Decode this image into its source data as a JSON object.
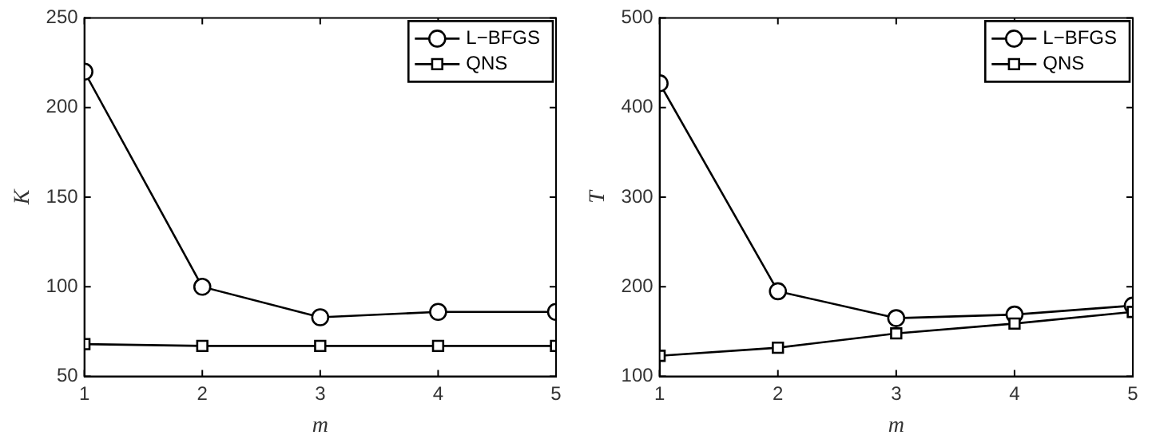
{
  "chart_data": [
    {
      "type": "line",
      "xlabel": "m",
      "ylabel": "K",
      "x": [
        1,
        2,
        3,
        4,
        5
      ],
      "xlim": [
        1,
        5
      ],
      "xticks": [
        1,
        2,
        3,
        4,
        5
      ],
      "ylim": [
        50,
        250
      ],
      "yticks": [
        50,
        100,
        150,
        200,
        250
      ],
      "grid": false,
      "legend": "top right",
      "series": [
        {
          "name": "L−BFGS",
          "color": "#000000",
          "marker": "circle",
          "values": [
            220,
            100,
            83,
            86,
            86
          ]
        },
        {
          "name": "QNS",
          "color": "#000000",
          "marker": "square",
          "values": [
            68,
            67,
            67,
            67,
            67
          ]
        }
      ]
    },
    {
      "type": "line",
      "xlabel": "m",
      "ylabel": "T",
      "x": [
        1,
        2,
        3,
        4,
        5
      ],
      "xlim": [
        1,
        5
      ],
      "xticks": [
        1,
        2,
        3,
        4,
        5
      ],
      "ylim": [
        100,
        500
      ],
      "yticks": [
        100,
        200,
        300,
        400,
        500
      ],
      "grid": false,
      "legend": "top right",
      "series": [
        {
          "name": "L−BFGS",
          "color": "#000000",
          "marker": "circle",
          "values": [
            427,
            195,
            165,
            169,
            179
          ]
        },
        {
          "name": "QNS",
          "color": "#000000",
          "marker": "square",
          "values": [
            123,
            132,
            148,
            159,
            172
          ]
        }
      ]
    }
  ]
}
